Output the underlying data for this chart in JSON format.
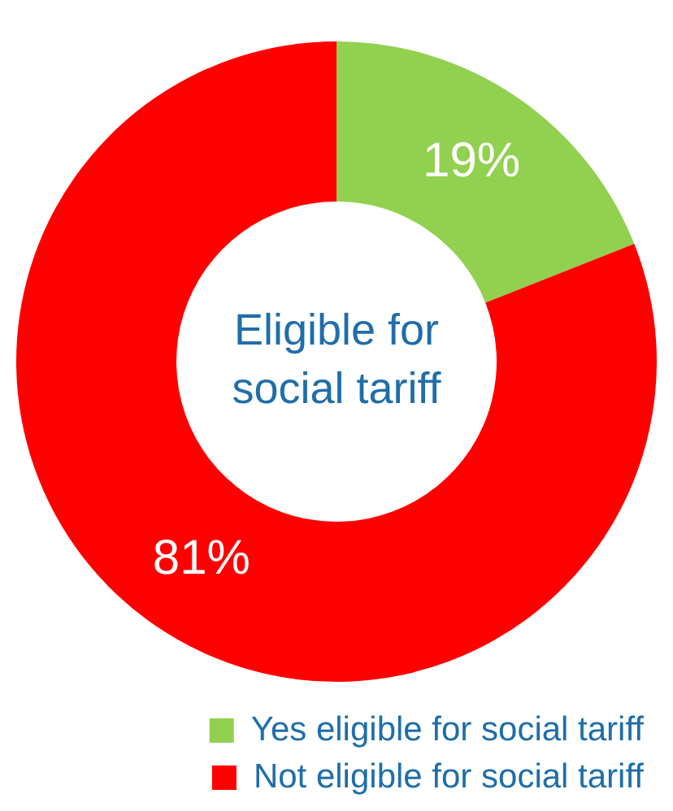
{
  "chart_data": {
    "type": "donut",
    "categories": [
      "Yes eligible for social tariff",
      "Not eligible for social tariff"
    ],
    "values": [
      19,
      81
    ],
    "colors": [
      "#92d050",
      "#ff0000"
    ],
    "value_labels": [
      "19%",
      "81%"
    ],
    "annotations": [
      "Eligible for social tariff"
    ],
    "legend": "bottom"
  }
}
